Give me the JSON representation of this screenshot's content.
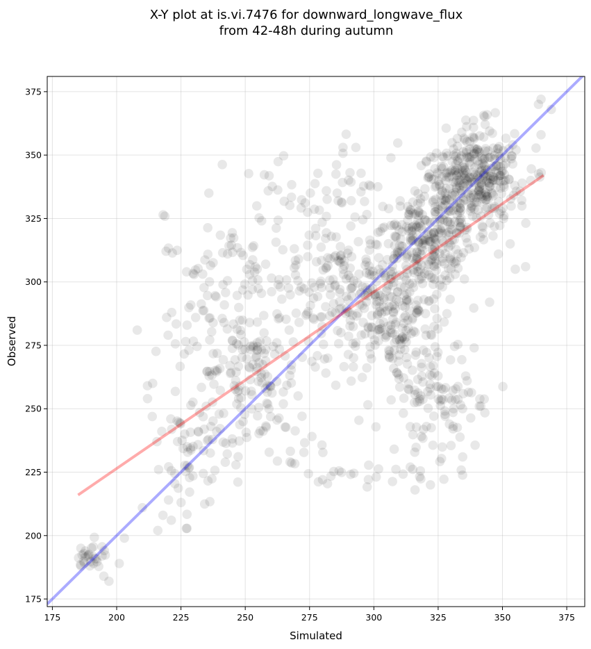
{
  "chart_data": {
    "type": "scatter",
    "title_lines": [
      "X-Y plot at is.vi.7476 for downward_longwave_flux",
      "from 42-48h during autumn"
    ],
    "xlabel": "Simulated",
    "ylabel": "Observed",
    "xlim": [
      173,
      382
    ],
    "ylim": [
      172,
      381
    ],
    "xticks": [
      175,
      200,
      225,
      250,
      275,
      300,
      325,
      350,
      375
    ],
    "yticks": [
      175,
      200,
      225,
      250,
      275,
      300,
      325,
      350,
      375
    ],
    "grid": true,
    "point_color": "#000000",
    "point_alpha": 0.09,
    "identity_line": {
      "color": "#0000ff",
      "from": [
        173,
        173
      ],
      "to": [
        382,
        382
      ]
    },
    "regression_line": {
      "color": "#ff0000",
      "from": [
        185,
        216
      ],
      "to": [
        366,
        342
      ]
    },
    "clusters": [
      {
        "cx": 340,
        "cy": 342,
        "sx": 9,
        "sy": 9,
        "n": 320
      },
      {
        "cx": 322,
        "cy": 318,
        "sx": 10,
        "sy": 11,
        "n": 250
      },
      {
        "cx": 305,
        "cy": 290,
        "sx": 12,
        "sy": 15,
        "n": 230
      },
      {
        "cx": 285,
        "cy": 300,
        "sx": 16,
        "sy": 17,
        "n": 160
      },
      {
        "cx": 252,
        "cy": 262,
        "sx": 11,
        "sy": 13,
        "n": 150
      },
      {
        "cx": 240,
        "cy": 300,
        "sx": 13,
        "sy": 18,
        "n": 80
      },
      {
        "cx": 325,
        "cy": 255,
        "sx": 10,
        "sy": 14,
        "n": 100
      },
      {
        "cx": 228,
        "cy": 232,
        "sx": 8,
        "sy": 11,
        "n": 60
      },
      {
        "cx": 190,
        "cy": 192,
        "sx": 3,
        "sy": 3,
        "n": 28
      },
      {
        "cx": 308,
        "cy": 225,
        "sx": 14,
        "sy": 4,
        "n": 25
      },
      {
        "cx": 270,
        "cy": 228,
        "sx": 12,
        "sy": 6,
        "n": 20
      },
      {
        "cx": 275,
        "cy": 335,
        "sx": 14,
        "sy": 8,
        "n": 35
      }
    ],
    "extra_points": [
      [
        195,
        184
      ],
      [
        197,
        182
      ],
      [
        201,
        189
      ],
      [
        203,
        199
      ],
      [
        208,
        281
      ],
      [
        212,
        254
      ],
      [
        214,
        260
      ],
      [
        216,
        202
      ],
      [
        218,
        208
      ],
      [
        220,
        279
      ],
      [
        288,
        353
      ],
      [
        293,
        353
      ],
      [
        365,
        372
      ],
      [
        364,
        370
      ],
      [
        369,
        368
      ],
      [
        365,
        358
      ],
      [
        361,
        340
      ],
      [
        322,
        220
      ],
      [
        316,
        218
      ],
      [
        331,
        250
      ],
      [
        341,
        251
      ],
      [
        345,
        292
      ],
      [
        355,
        305
      ],
      [
        359,
        306
      ],
      [
        353,
        315
      ],
      [
        339,
        274
      ],
      [
        210,
        211
      ]
    ]
  }
}
